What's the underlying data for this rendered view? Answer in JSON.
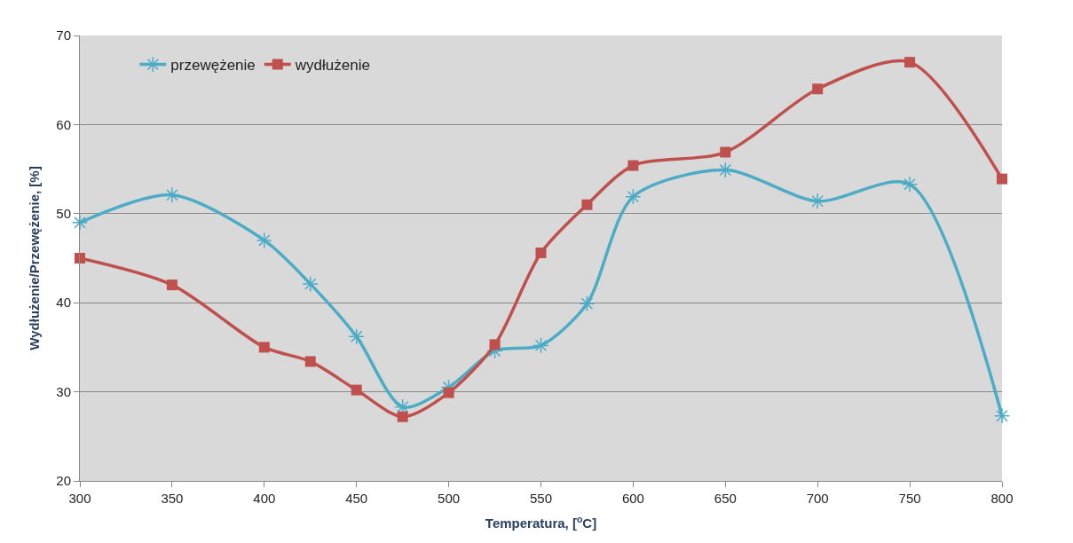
{
  "chart_data": {
    "type": "line",
    "xlabel": "Temperatura, [$^{o}$C]",
    "ylabel": "Wydłużenie/Przewężenie, [%]",
    "x": [
      300,
      350,
      400,
      425,
      450,
      475,
      500,
      525,
      550,
      575,
      600,
      650,
      700,
      750,
      800
    ],
    "series": [
      {
        "name": "przewężenie",
        "color": "#4bacc6",
        "marker": "cross",
        "values": [
          49.0,
          52.1,
          47.0,
          42.1,
          36.2,
          28.3,
          30.5,
          34.6,
          35.2,
          39.9,
          51.9,
          54.9,
          51.4,
          53.3,
          27.3
        ]
      },
      {
        "name": "wydłużenie",
        "color": "#c0504d",
        "marker": "square",
        "values": [
          45.0,
          42.0,
          35.0,
          33.4,
          30.2,
          27.2,
          29.9,
          35.3,
          45.6,
          51.0,
          55.4,
          56.9,
          64.0,
          67.0,
          53.9
        ]
      }
    ],
    "xlim": [
      300,
      800
    ],
    "xticks": [
      300,
      350,
      400,
      450,
      500,
      550,
      600,
      650,
      700,
      750,
      800
    ],
    "ylim": [
      20,
      70
    ],
    "yticks": [
      20,
      30,
      40,
      50,
      60,
      70
    ],
    "grid": "y",
    "legend": "top left",
    "line_style": "solid"
  }
}
